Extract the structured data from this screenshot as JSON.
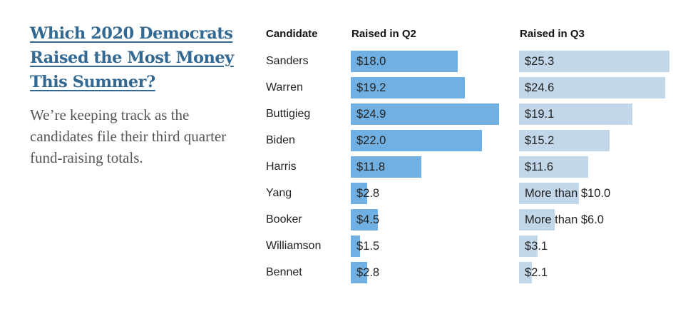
{
  "header": {
    "title": "Which 2020 Democrats Raised the Most Money This Summer?",
    "subtitle": "We’re keeping track as the candidates file their third quarter fund-raising totals."
  },
  "chart_data": {
    "type": "bar",
    "title": "Which 2020 Democrats Raised the Most Money This Summer?",
    "units": "millions of dollars",
    "column_headers": {
      "candidate": "Candidate",
      "q2": "Raised in Q2",
      "q3": "Raised in Q3"
    },
    "colors": {
      "q2": "#70b0e2",
      "q3": "#c3d7ea"
    },
    "categories": [
      "Sanders",
      "Warren",
      "Buttigieg",
      "Biden",
      "Harris",
      "Yang",
      "Booker",
      "Williamson",
      "Bennet"
    ],
    "series": [
      {
        "name": "Raised in Q2",
        "values": [
          18.0,
          19.2,
          24.9,
          22.0,
          11.8,
          2.8,
          4.5,
          1.5,
          2.8
        ],
        "labels": [
          "$18.0",
          "$19.2",
          "$24.9",
          "$22.0",
          "$11.8",
          "$2.8",
          "$4.5",
          "$1.5",
          "$2.8"
        ]
      },
      {
        "name": "Raised in Q3",
        "values": [
          25.3,
          24.6,
          19.1,
          15.2,
          11.6,
          10.0,
          6.0,
          3.1,
          2.1
        ],
        "labels": [
          "$25.3",
          "$24.6",
          "$19.1",
          "$15.2",
          "$11.6",
          "More than $10.0",
          "More than $6.0",
          "$3.1",
          "$2.1"
        ]
      }
    ]
  }
}
